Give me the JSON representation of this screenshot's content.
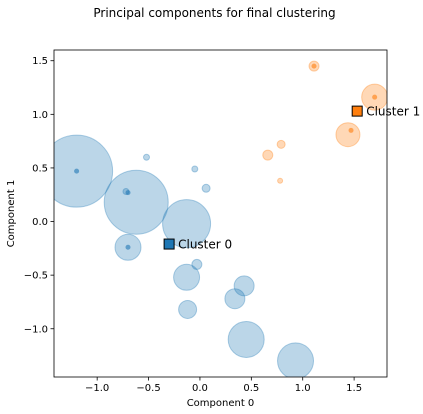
{
  "chart_data": {
    "type": "scatter",
    "title": "Principal components for final clustering",
    "xlabel": "Component 0",
    "ylabel": "Component 1",
    "xlim": [
      -1.42,
      1.82
    ],
    "ylim": [
      -1.45,
      1.6
    ],
    "xticks": [
      -1.0,
      -0.5,
      0.0,
      0.5,
      1.0,
      1.5
    ],
    "xtick_labels": [
      "−1.0",
      "−0.5",
      "0.0",
      "0.5",
      "1.0",
      "1.5"
    ],
    "yticks": [
      -1.0,
      -0.5,
      0.0,
      0.5,
      1.0,
      1.5
    ],
    "ytick_labels": [
      "−1.0",
      "−0.5",
      "0.0",
      "0.5",
      "1.0",
      "1.5"
    ],
    "grid": false,
    "series": [
      {
        "color": "#1f77b4",
        "fill_opacity": 0.3,
        "points": [
          {
            "x": -1.2,
            "y": 0.47,
            "size": 36
          },
          {
            "x": -0.62,
            "y": 0.18,
            "size": 32
          },
          {
            "x": -0.13,
            "y": -0.02,
            "size": 24
          },
          {
            "x": -0.7,
            "y": -0.24,
            "size": 13
          },
          {
            "x": -0.13,
            "y": -0.52,
            "size": 13
          },
          {
            "x": 0.43,
            "y": -0.6,
            "size": 10
          },
          {
            "x": 0.34,
            "y": -0.72,
            "size": 10
          },
          {
            "x": -0.12,
            "y": -0.82,
            "size": 9
          },
          {
            "x": 0.45,
            "y": -1.1,
            "size": 18
          },
          {
            "x": 0.93,
            "y": -1.3,
            "size": 18
          },
          {
            "x": -0.52,
            "y": 0.6,
            "size": 3
          },
          {
            "x": -0.05,
            "y": 0.49,
            "size": 3
          },
          {
            "x": 0.06,
            "y": 0.31,
            "size": 4
          },
          {
            "x": -0.72,
            "y": 0.28,
            "size": 3
          },
          {
            "x": -0.03,
            "y": -0.4,
            "size": 5
          }
        ],
        "centers": [
          {
            "x": -1.2,
            "y": 0.47
          },
          {
            "x": -0.7,
            "y": 0.27
          },
          {
            "x": -0.7,
            "y": -0.24
          }
        ],
        "centroid": {
          "x": -0.3,
          "y": -0.21,
          "label": "Cluster 0"
        }
      },
      {
        "color": "#ff7f0e",
        "fill_opacity": 0.3,
        "points": [
          {
            "x": 1.7,
            "y": 1.16,
            "size": 13
          },
          {
            "x": 1.44,
            "y": 0.81,
            "size": 12
          },
          {
            "x": 1.11,
            "y": 1.45,
            "size": 5
          },
          {
            "x": 0.66,
            "y": 0.62,
            "size": 5
          },
          {
            "x": 0.79,
            "y": 0.72,
            "size": 4
          },
          {
            "x": 0.78,
            "y": 0.38,
            "size": 2.5
          }
        ],
        "centers": [
          {
            "x": 1.7,
            "y": 1.16
          },
          {
            "x": 1.47,
            "y": 0.85
          },
          {
            "x": 1.11,
            "y": 1.45
          }
        ],
        "centroid": {
          "x": 1.53,
          "y": 1.03,
          "label": "Cluster 1"
        }
      }
    ]
  }
}
